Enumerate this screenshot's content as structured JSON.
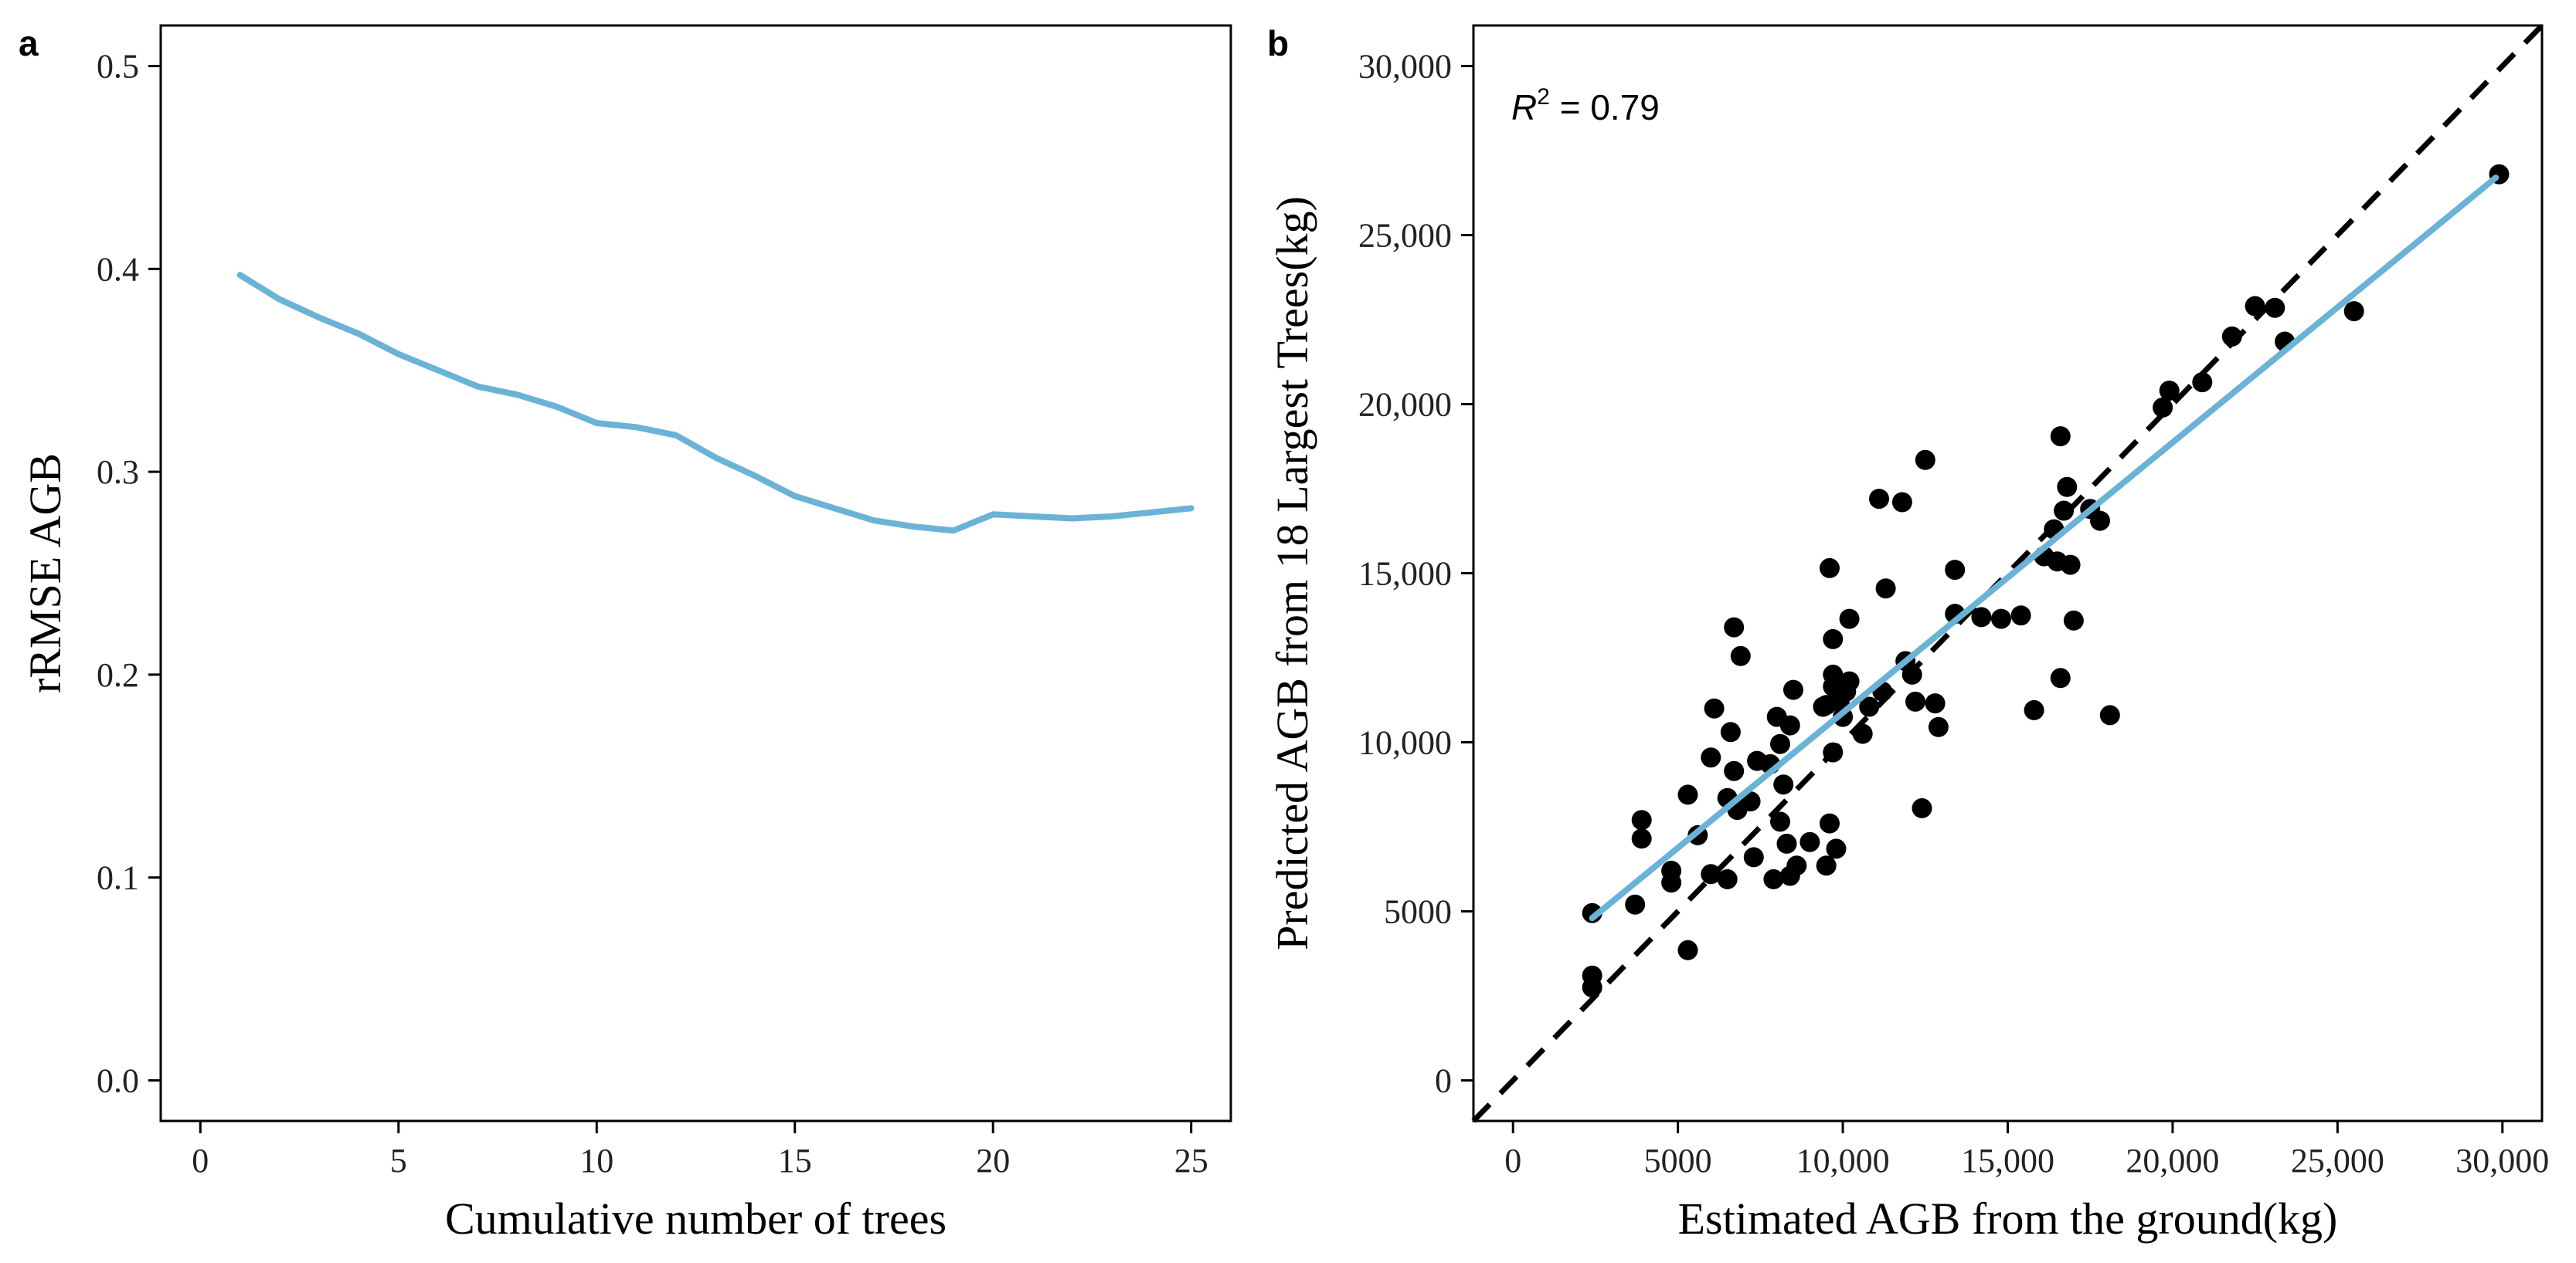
{
  "figure": {
    "panel_a_letter": "a",
    "panel_b_letter": "b"
  },
  "colors": {
    "line": "#6bb3d6",
    "fit_line": "#6bb3d6",
    "points": "#000000",
    "identity_line": "#000000",
    "axis": "#000000"
  },
  "chart_data": [
    {
      "type": "line",
      "panel": "a",
      "title": "",
      "xlabel": "Cumulative number of trees",
      "ylabel": "rRMSE AGB",
      "xlim": [
        -1,
        26
      ],
      "ylim": [
        -0.02,
        0.52
      ],
      "xticks": [
        0,
        5,
        10,
        15,
        20,
        25
      ],
      "xtick_labels": [
        "0",
        "5",
        "10",
        "15",
        "20",
        "25"
      ],
      "yticks": [
        0.0,
        0.1,
        0.2,
        0.3,
        0.4,
        0.5
      ],
      "ytick_labels": [
        "0.0",
        "0.1",
        "0.2",
        "0.3",
        "0.4",
        "0.5"
      ],
      "grid": false,
      "series": [
        {
          "x": [
            1,
            2,
            3,
            4,
            5,
            6,
            7,
            8,
            9,
            10,
            11,
            12,
            13,
            14,
            15,
            16,
            17,
            18,
            19,
            20,
            21,
            22,
            23,
            24,
            25
          ],
          "values": [
            0.397,
            0.385,
            0.376,
            0.368,
            0.358,
            0.35,
            0.342,
            0.338,
            0.332,
            0.324,
            0.322,
            0.318,
            0.307,
            0.298,
            0.288,
            0.282,
            0.276,
            0.273,
            0.271,
            0.279,
            0.278,
            0.277,
            0.278,
            0.28,
            0.282
          ]
        }
      ]
    },
    {
      "type": "scatter",
      "panel": "b",
      "title": "",
      "xlabel": "Estimated AGB from the ground(kg)",
      "ylabel": "Predicted AGB from 18  Largest Trees(kg)",
      "annotation": {
        "r2_symbol": "R",
        "r2_exponent": "2",
        "r2_text": " = 0.79"
      },
      "xlim": [
        -1200,
        31200
      ],
      "ylim": [
        -1200,
        31200
      ],
      "xticks": [
        0,
        5000,
        10000,
        15000,
        20000,
        25000,
        30000
      ],
      "xtick_labels": [
        "0",
        "5000",
        "10,000",
        "15,000",
        "20,000",
        "25,000",
        "30,000"
      ],
      "yticks": [
        0,
        5000,
        10000,
        15000,
        20000,
        25000,
        30000
      ],
      "ytick_labels": [
        "0",
        "5000",
        "10,000",
        "15,000",
        "20,000",
        "25,000",
        "30,000"
      ],
      "grid": false,
      "identity_line": {
        "x": [
          -1200,
          31200
        ],
        "y": [
          -1200,
          31200
        ],
        "style": "dashed"
      },
      "fit_line": {
        "x": [
          2400,
          29800
        ],
        "y": [
          4800,
          26700
        ]
      },
      "points": [
        [
          2400,
          4950
        ],
        [
          2400,
          3100
        ],
        [
          2400,
          2750
        ],
        [
          3700,
          5200
        ],
        [
          3900,
          7700
        ],
        [
          3900,
          7150
        ],
        [
          4800,
          6200
        ],
        [
          4800,
          5850
        ],
        [
          5300,
          8450
        ],
        [
          5300,
          3850
        ],
        [
          5600,
          7250
        ],
        [
          6000,
          9550
        ],
        [
          6000,
          6100
        ],
        [
          6100,
          11000
        ],
        [
          6500,
          8350
        ],
        [
          6500,
          5950
        ],
        [
          6600,
          10300
        ],
        [
          6700,
          13400
        ],
        [
          6700,
          9150
        ],
        [
          6800,
          8000
        ],
        [
          6900,
          12550
        ],
        [
          7200,
          8250
        ],
        [
          7300,
          6600
        ],
        [
          7400,
          9450
        ],
        [
          7800,
          9350
        ],
        [
          7900,
          5950
        ],
        [
          8000,
          10750
        ],
        [
          8100,
          7650
        ],
        [
          8100,
          9950
        ],
        [
          8200,
          8750
        ],
        [
          8300,
          7000
        ],
        [
          8400,
          10500
        ],
        [
          8400,
          6050
        ],
        [
          8500,
          11550
        ],
        [
          8600,
          6350
        ],
        [
          9000,
          7050
        ],
        [
          9400,
          11050
        ],
        [
          9500,
          11100
        ],
        [
          9500,
          6350
        ],
        [
          9600,
          15150
        ],
        [
          9600,
          7600
        ],
        [
          9700,
          13050
        ],
        [
          9700,
          12000
        ],
        [
          9700,
          11650
        ],
        [
          9700,
          9700
        ],
        [
          9800,
          11550
        ],
        [
          9800,
          6850
        ],
        [
          9900,
          11200
        ],
        [
          10000,
          10750
        ],
        [
          10100,
          11500
        ],
        [
          10200,
          11800
        ],
        [
          10200,
          13650
        ],
        [
          10600,
          10250
        ],
        [
          10800,
          11050
        ],
        [
          11100,
          17200
        ],
        [
          11200,
          11500
        ],
        [
          11300,
          14550
        ],
        [
          11800,
          17100
        ],
        [
          11900,
          12400
        ],
        [
          12100,
          12000
        ],
        [
          12200,
          11200
        ],
        [
          12400,
          8050
        ],
        [
          12500,
          18350
        ],
        [
          12800,
          11150
        ],
        [
          12900,
          10450
        ],
        [
          13400,
          13800
        ],
        [
          13400,
          15100
        ],
        [
          14200,
          13700
        ],
        [
          14800,
          13650
        ],
        [
          15400,
          13750
        ],
        [
          15800,
          10950
        ],
        [
          16100,
          15500
        ],
        [
          16400,
          16300
        ],
        [
          16500,
          15350
        ],
        [
          16600,
          11900
        ],
        [
          16600,
          19050
        ],
        [
          16700,
          16850
        ],
        [
          16800,
          17550
        ],
        [
          16900,
          15250
        ],
        [
          17000,
          13600
        ],
        [
          17500,
          16900
        ],
        [
          17800,
          16550
        ],
        [
          18100,
          10800
        ],
        [
          19700,
          19900
        ],
        [
          19900,
          20400
        ],
        [
          20900,
          20650
        ],
        [
          21800,
          22000
        ],
        [
          22500,
          22900
        ],
        [
          23100,
          22850
        ],
        [
          23400,
          21850
        ],
        [
          25500,
          22750
        ],
        [
          29900,
          26800
        ]
      ]
    }
  ]
}
